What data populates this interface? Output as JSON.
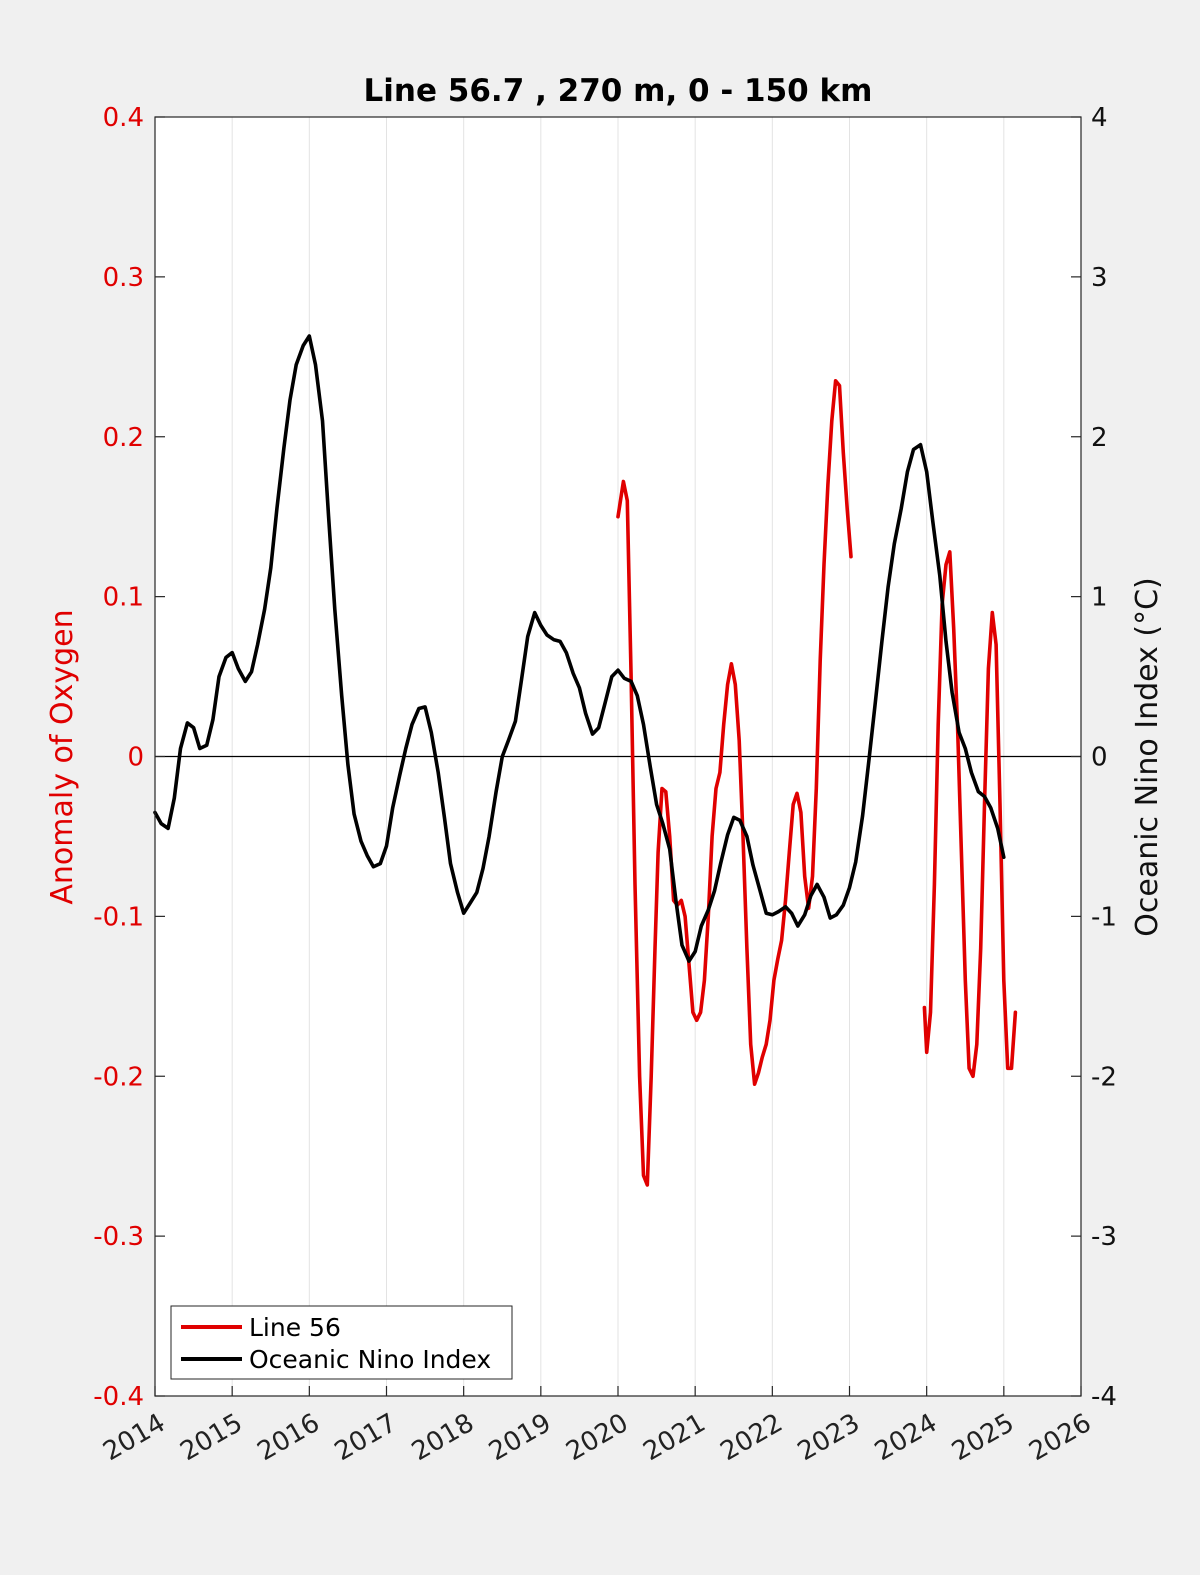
{
  "chart_data": {
    "type": "line",
    "title": "Line 56.7 , 270 m, 0 - 150 km",
    "xlabel": "",
    "xlim": [
      2014,
      2026
    ],
    "x_ticks": [
      "2014",
      "2015",
      "2016",
      "2017",
      "2018",
      "2019",
      "2020",
      "2021",
      "2022",
      "2023",
      "2024",
      "2025",
      "2026"
    ],
    "y_left": {
      "label": "Anomaly of Oxygen",
      "lim": [
        -0.4,
        0.4
      ],
      "ticks": [
        "-0.4",
        "-0.3",
        "-0.2",
        "-0.1",
        "0",
        "0.1",
        "0.2",
        "0.3",
        "0.4"
      ],
      "color": "#e00000"
    },
    "y_right": {
      "label": "Oceanic Nino Index (°C)",
      "lim": [
        -4,
        4
      ],
      "ticks": [
        "-4",
        "-3",
        "-2",
        "-1",
        "0",
        "1",
        "2",
        "3",
        "4"
      ],
      "color": "#000000"
    },
    "grid": "vertical",
    "legend_placement": "bottom-left",
    "series": [
      {
        "name": "Line 56",
        "axis": "left",
        "color": "#e00000",
        "segments": [
          [
            [
              2020.0,
              0.15
            ],
            [
              2020.07,
              0.172
            ],
            [
              2020.12,
              0.16
            ],
            [
              2020.17,
              0.05
            ],
            [
              2020.22,
              -0.08
            ],
            [
              2020.28,
              -0.2
            ],
            [
              2020.33,
              -0.262
            ],
            [
              2020.38,
              -0.268
            ],
            [
              2020.43,
              -0.2
            ],
            [
              2020.48,
              -0.12
            ],
            [
              2020.52,
              -0.06
            ],
            [
              2020.57,
              -0.02
            ],
            [
              2020.62,
              -0.022
            ],
            [
              2020.67,
              -0.05
            ],
            [
              2020.72,
              -0.09
            ],
            [
              2020.77,
              -0.093
            ],
            [
              2020.82,
              -0.09
            ],
            [
              2020.87,
              -0.1
            ],
            [
              2020.92,
              -0.13
            ],
            [
              2020.97,
              -0.16
            ],
            [
              2021.02,
              -0.165
            ],
            [
              2021.07,
              -0.16
            ],
            [
              2021.12,
              -0.14
            ],
            [
              2021.17,
              -0.1
            ],
            [
              2021.22,
              -0.05
            ],
            [
              2021.27,
              -0.02
            ],
            [
              2021.32,
              -0.01
            ],
            [
              2021.37,
              0.02
            ],
            [
              2021.42,
              0.045
            ],
            [
              2021.47,
              0.058
            ],
            [
              2021.52,
              0.045
            ],
            [
              2021.57,
              0.01
            ],
            [
              2021.62,
              -0.05
            ],
            [
              2021.67,
              -0.12
            ],
            [
              2021.72,
              -0.18
            ],
            [
              2021.77,
              -0.205
            ],
            [
              2021.82,
              -0.198
            ],
            [
              2021.87,
              -0.188
            ],
            [
              2021.92,
              -0.18
            ],
            [
              2021.97,
              -0.165
            ],
            [
              2022.02,
              -0.14
            ],
            [
              2022.07,
              -0.127
            ],
            [
              2022.12,
              -0.115
            ],
            [
              2022.17,
              -0.09
            ],
            [
              2022.22,
              -0.06
            ],
            [
              2022.27,
              -0.03
            ],
            [
              2022.32,
              -0.023
            ],
            [
              2022.37,
              -0.035
            ],
            [
              2022.42,
              -0.075
            ],
            [
              2022.47,
              -0.095
            ],
            [
              2022.52,
              -0.075
            ],
            [
              2022.57,
              -0.02
            ],
            [
              2022.62,
              0.06
            ],
            [
              2022.67,
              0.12
            ],
            [
              2022.72,
              0.17
            ],
            [
              2022.77,
              0.21
            ],
            [
              2022.82,
              0.235
            ],
            [
              2022.87,
              0.232
            ],
            [
              2022.92,
              0.19
            ],
            [
              2022.97,
              0.155
            ],
            [
              2023.02,
              0.125
            ]
          ],
          [
            [
              2023.97,
              -0.157
            ],
            [
              2024.0,
              -0.185
            ],
            [
              2024.05,
              -0.16
            ],
            [
              2024.1,
              -0.08
            ],
            [
              2024.15,
              0.02
            ],
            [
              2024.2,
              0.095
            ],
            [
              2024.25,
              0.12
            ],
            [
              2024.3,
              0.128
            ],
            [
              2024.35,
              0.08
            ],
            [
              2024.4,
              0.02
            ],
            [
              2024.45,
              -0.06
            ],
            [
              2024.5,
              -0.14
            ],
            [
              2024.55,
              -0.195
            ],
            [
              2024.6,
              -0.2
            ],
            [
              2024.65,
              -0.18
            ],
            [
              2024.7,
              -0.12
            ],
            [
              2024.75,
              -0.03
            ],
            [
              2024.8,
              0.055
            ],
            [
              2024.85,
              0.09
            ],
            [
              2024.9,
              0.07
            ],
            [
              2024.95,
              -0.03
            ],
            [
              2025.0,
              -0.14
            ],
            [
              2025.05,
              -0.195
            ],
            [
              2025.1,
              -0.195
            ],
            [
              2025.15,
              -0.16
            ]
          ]
        ]
      },
      {
        "name": "Oceanic Nino Index",
        "axis": "right",
        "color": "#000000",
        "points": [
          [
            2014.0,
            -0.35
          ],
          [
            2014.08,
            -0.42
          ],
          [
            2014.17,
            -0.45
          ],
          [
            2014.25,
            -0.26
          ],
          [
            2014.33,
            0.05
          ],
          [
            2014.42,
            0.21
          ],
          [
            2014.5,
            0.18
          ],
          [
            2014.58,
            0.05
          ],
          [
            2014.67,
            0.07
          ],
          [
            2014.75,
            0.23
          ],
          [
            2014.83,
            0.5
          ],
          [
            2014.92,
            0.62
          ],
          [
            2015.0,
            0.65
          ],
          [
            2015.08,
            0.55
          ],
          [
            2015.17,
            0.47
          ],
          [
            2015.25,
            0.53
          ],
          [
            2015.33,
            0.7
          ],
          [
            2015.42,
            0.92
          ],
          [
            2015.5,
            1.18
          ],
          [
            2015.58,
            1.55
          ],
          [
            2015.67,
            1.93
          ],
          [
            2015.75,
            2.23
          ],
          [
            2015.83,
            2.45
          ],
          [
            2015.92,
            2.57
          ],
          [
            2016.0,
            2.63
          ],
          [
            2016.08,
            2.45
          ],
          [
            2016.17,
            2.1
          ],
          [
            2016.25,
            1.5
          ],
          [
            2016.33,
            0.92
          ],
          [
            2016.42,
            0.38
          ],
          [
            2016.5,
            -0.05
          ],
          [
            2016.58,
            -0.36
          ],
          [
            2016.67,
            -0.53
          ],
          [
            2016.75,
            -0.62
          ],
          [
            2016.83,
            -0.69
          ],
          [
            2016.92,
            -0.67
          ],
          [
            2017.0,
            -0.56
          ],
          [
            2017.08,
            -0.32
          ],
          [
            2017.17,
            -0.12
          ],
          [
            2017.25,
            0.05
          ],
          [
            2017.33,
            0.2
          ],
          [
            2017.42,
            0.3
          ],
          [
            2017.5,
            0.31
          ],
          [
            2017.58,
            0.15
          ],
          [
            2017.67,
            -0.1
          ],
          [
            2017.75,
            -0.38
          ],
          [
            2017.83,
            -0.67
          ],
          [
            2017.92,
            -0.85
          ],
          [
            2018.0,
            -0.98
          ],
          [
            2018.08,
            -0.92
          ],
          [
            2018.17,
            -0.85
          ],
          [
            2018.25,
            -0.7
          ],
          [
            2018.33,
            -0.5
          ],
          [
            2018.42,
            -0.22
          ],
          [
            2018.5,
            0.0
          ],
          [
            2018.58,
            0.1
          ],
          [
            2018.67,
            0.22
          ],
          [
            2018.75,
            0.48
          ],
          [
            2018.83,
            0.75
          ],
          [
            2018.92,
            0.9
          ],
          [
            2019.0,
            0.82
          ],
          [
            2019.08,
            0.76
          ],
          [
            2019.17,
            0.73
          ],
          [
            2019.25,
            0.72
          ],
          [
            2019.33,
            0.65
          ],
          [
            2019.42,
            0.52
          ],
          [
            2019.5,
            0.43
          ],
          [
            2019.58,
            0.27
          ],
          [
            2019.67,
            0.14
          ],
          [
            2019.75,
            0.18
          ],
          [
            2019.83,
            0.33
          ],
          [
            2019.92,
            0.5
          ],
          [
            2020.0,
            0.54
          ],
          [
            2020.08,
            0.49
          ],
          [
            2020.17,
            0.47
          ],
          [
            2020.25,
            0.38
          ],
          [
            2020.33,
            0.2
          ],
          [
            2020.42,
            -0.07
          ],
          [
            2020.5,
            -0.3
          ],
          [
            2020.58,
            -0.42
          ],
          [
            2020.67,
            -0.58
          ],
          [
            2020.75,
            -0.9
          ],
          [
            2020.83,
            -1.18
          ],
          [
            2020.92,
            -1.28
          ],
          [
            2021.0,
            -1.22
          ],
          [
            2021.08,
            -1.06
          ],
          [
            2021.17,
            -0.96
          ],
          [
            2021.25,
            -0.84
          ],
          [
            2021.33,
            -0.67
          ],
          [
            2021.42,
            -0.49
          ],
          [
            2021.5,
            -0.38
          ],
          [
            2021.58,
            -0.4
          ],
          [
            2021.67,
            -0.5
          ],
          [
            2021.75,
            -0.68
          ],
          [
            2021.83,
            -0.82
          ],
          [
            2021.92,
            -0.98
          ],
          [
            2022.0,
            -0.99
          ],
          [
            2022.08,
            -0.97
          ],
          [
            2022.17,
            -0.94
          ],
          [
            2022.25,
            -0.98
          ],
          [
            2022.33,
            -1.06
          ],
          [
            2022.42,
            -0.99
          ],
          [
            2022.5,
            -0.87
          ],
          [
            2022.58,
            -0.8
          ],
          [
            2022.67,
            -0.88
          ],
          [
            2022.75,
            -1.01
          ],
          [
            2022.83,
            -0.99
          ],
          [
            2022.92,
            -0.93
          ],
          [
            2023.0,
            -0.82
          ],
          [
            2023.08,
            -0.66
          ],
          [
            2023.17,
            -0.37
          ],
          [
            2023.25,
            -0.03
          ],
          [
            2023.33,
            0.32
          ],
          [
            2023.42,
            0.72
          ],
          [
            2023.5,
            1.06
          ],
          [
            2023.58,
            1.33
          ],
          [
            2023.67,
            1.55
          ],
          [
            2023.75,
            1.78
          ],
          [
            2023.83,
            1.92
          ],
          [
            2023.92,
            1.95
          ],
          [
            2024.0,
            1.78
          ],
          [
            2024.08,
            1.47
          ],
          [
            2024.17,
            1.13
          ],
          [
            2024.25,
            0.72
          ],
          [
            2024.33,
            0.4
          ],
          [
            2024.42,
            0.15
          ],
          [
            2024.5,
            0.05
          ],
          [
            2024.58,
            -0.1
          ],
          [
            2024.67,
            -0.22
          ],
          [
            2024.75,
            -0.25
          ],
          [
            2024.83,
            -0.32
          ],
          [
            2024.92,
            -0.45
          ],
          [
            2025.0,
            -0.63
          ]
        ]
      }
    ]
  },
  "legend": {
    "items": [
      {
        "label": "Line 56",
        "color": "#e00000"
      },
      {
        "label": "Oceanic Nino Index",
        "color": "#000000"
      }
    ]
  }
}
